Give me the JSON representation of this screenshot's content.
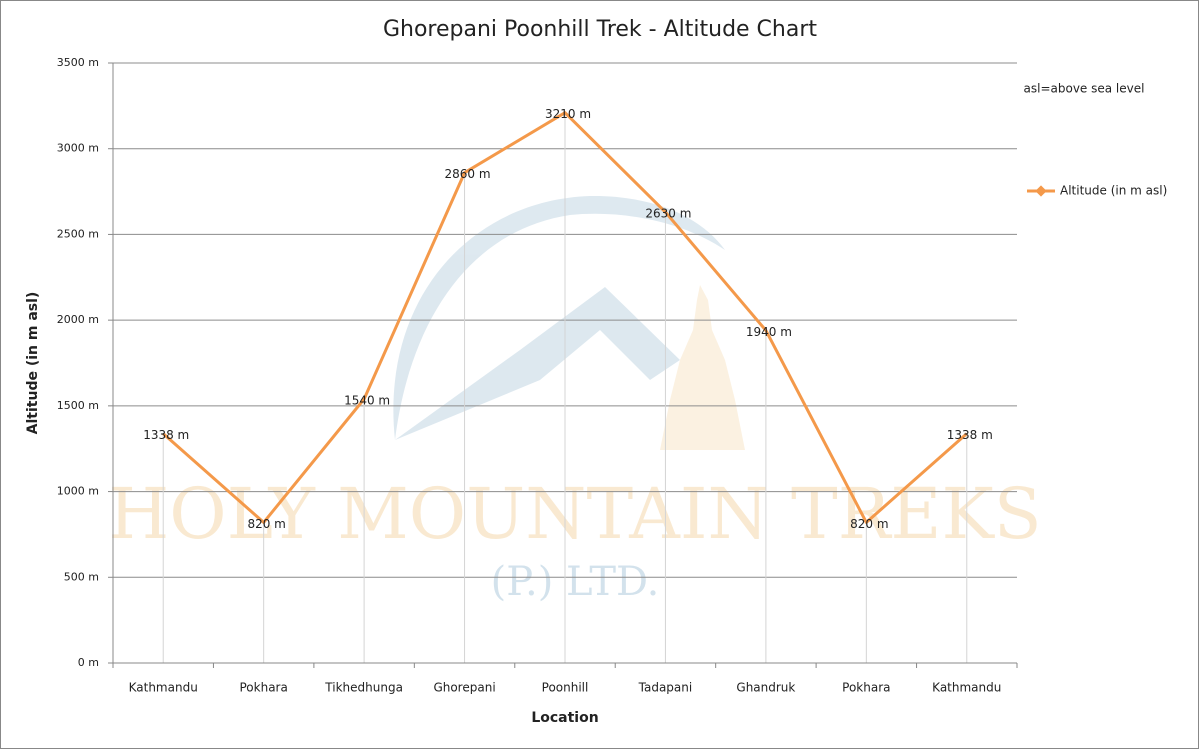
{
  "chart_data": {
    "type": "line",
    "title": "Ghorepani Poonhill Trek - Altitude Chart",
    "x_label": "Location",
    "y_label": "Altitude (in m asl)",
    "annotation": "asl=above sea level",
    "watermark": [
      "HOLY MOUNTAIN TREKS",
      "(P.) LTD."
    ],
    "categories": [
      "Kathmandu",
      "Pokhara",
      "Tikhedhunga",
      "Ghorepani",
      "Poonhill",
      "Tadapani",
      "Ghandruk",
      "Pokhara",
      "Kathmandu"
    ],
    "series": [
      {
        "name": "Altitude (in m asl)",
        "color": "#f4994a",
        "values": [
          1338,
          820,
          1540,
          2860,
          3210,
          2630,
          1940,
          820,
          1338
        ],
        "value_labels": [
          "1338 m",
          "820 m",
          "1540 m",
          "2860 m",
          "3210 m",
          "2630 m",
          "1940 m",
          "820 m",
          "1338 m"
        ]
      }
    ],
    "ylim": [
      0,
      3500
    ],
    "yticks": [
      {
        "value": 0,
        "label": "0 m"
      },
      {
        "value": 500,
        "label": "500 m"
      },
      {
        "value": 1000,
        "label": "1000 m"
      },
      {
        "value": 1500,
        "label": "1500 m"
      },
      {
        "value": 2000,
        "label": "2000 m"
      },
      {
        "value": 2500,
        "label": "2500 m"
      },
      {
        "value": 3000,
        "label": "3000 m"
      },
      {
        "value": 3500,
        "label": "3500 m"
      }
    ],
    "grid": true,
    "legend": "right"
  }
}
